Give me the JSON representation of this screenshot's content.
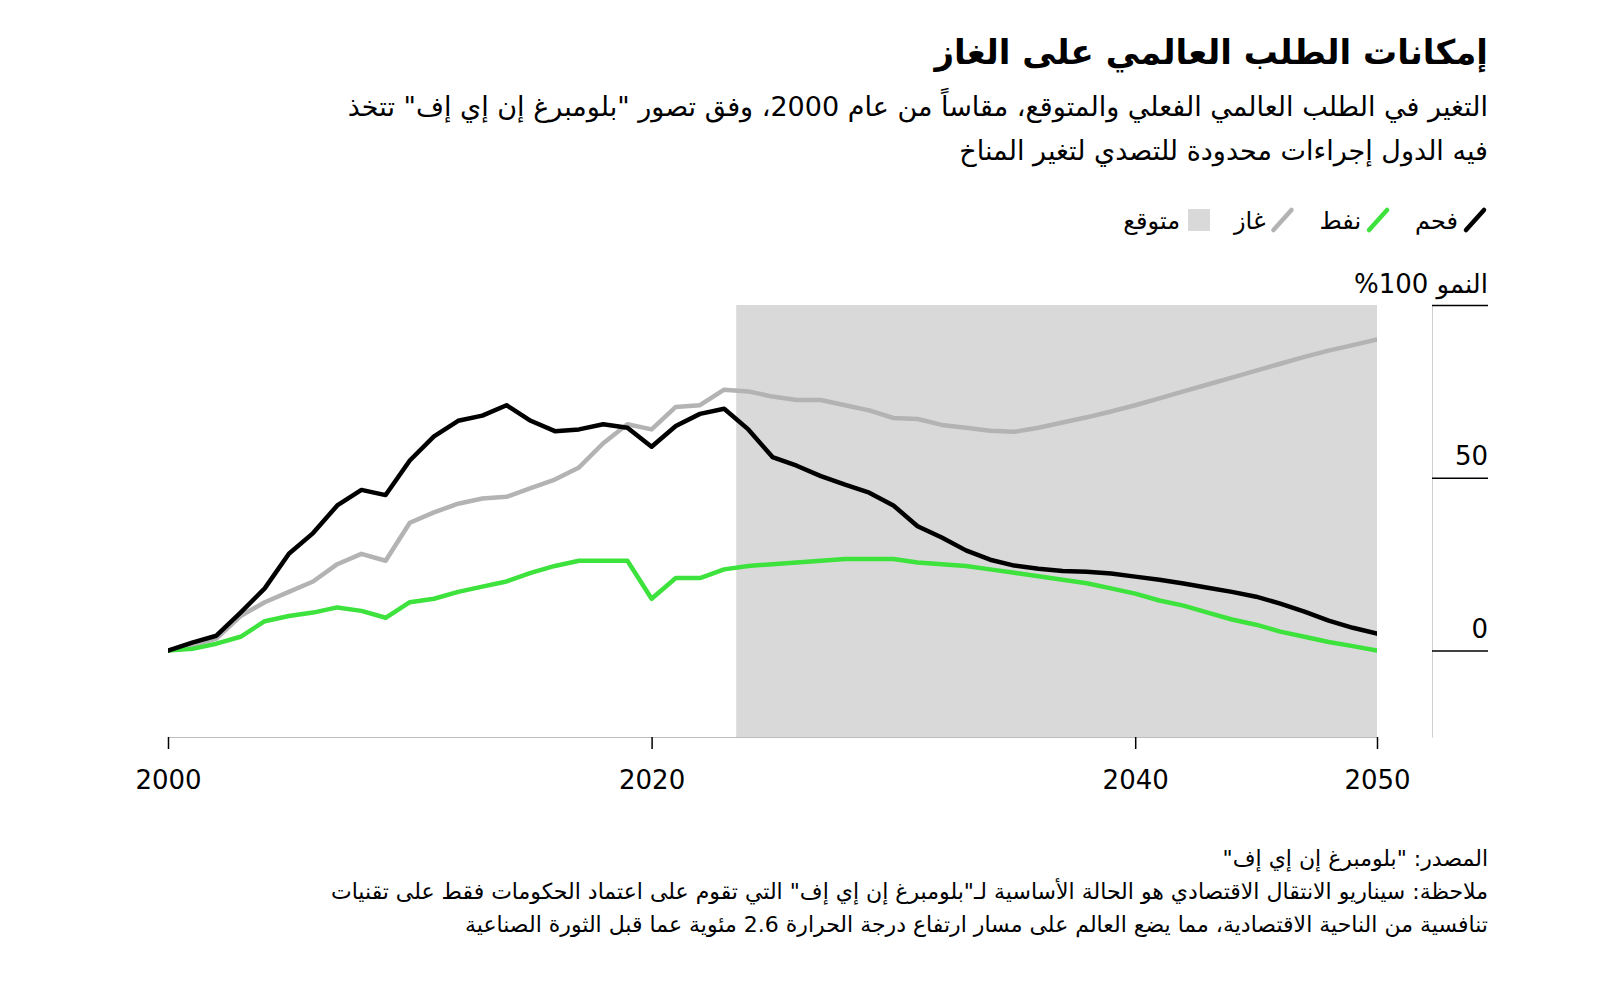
{
  "chart_data": {
    "type": "line",
    "title": "إمكانات الطلب العالمي على الغاز",
    "subtitle": [
      "التغير في الطلب العالمي الفعلي والمتوقع، مقاساً من عام 2000، وفق تصور \"بلومبرغ إن إي إف\" تتخذ",
      "فيه الدول إجراءات محدودة للتصدي لتغير المناخ"
    ],
    "forecast_label": "متوقع",
    "forecast_range": [
      2023.5,
      2050
    ],
    "source": "المصدر: \"بلومبرغ إن إي إف\"",
    "note": [
      "ملاحظة: سيناريو الانتقال الاقتصادي هو الحالة الأساسية لـ\"بلومبرغ إن إي إف\" التي تقوم على اعتماد الحكومات فقط على تقنيات",
      "تنافسية من الناحية الاقتصادية، مما يضع العالم على مسار ارتفاع درجة الحرارة 2.6 مئوية عما قبل الثورة الصناعية"
    ],
    "x": [
      2000,
      2001,
      2002,
      2003,
      2004,
      2005,
      2006,
      2007,
      2008,
      2009,
      2010,
      2011,
      2012,
      2013,
      2014,
      2015,
      2016,
      2017,
      2018,
      2019,
      2020,
      2021,
      2022,
      2023,
      2024,
      2025,
      2026,
      2027,
      2028,
      2029,
      2030,
      2031,
      2032,
      2033,
      2034,
      2035,
      2036,
      2037,
      2038,
      2039,
      2040,
      2041,
      2042,
      2043,
      2044,
      2045,
      2046,
      2047,
      2048,
      2049,
      2050
    ],
    "series": [
      {
        "name": "فحم",
        "color": "#000000",
        "values": [
          0,
          2.3,
          4.3,
          11,
          18,
          28,
          34,
          42,
          46.5,
          45,
          55,
          62,
          66.5,
          68,
          71,
          66.5,
          63.5,
          64,
          65.5,
          64.5,
          59,
          65,
          68.5,
          70,
          64,
          56,
          53.5,
          50.5,
          48,
          45.7,
          42,
          36,
          32.7,
          29,
          26.3,
          24.6,
          23.7,
          23,
          22.8,
          22.3,
          21.4,
          20.5,
          19.4,
          18.2,
          17,
          15.6,
          13.6,
          11.3,
          8.7,
          6.6,
          4.9
        ]
      },
      {
        "name": "نفط",
        "color": "#3de23d",
        "values": [
          0,
          0.5,
          2,
          4,
          8.5,
          10,
          11,
          12.5,
          11.5,
          9.5,
          14,
          15,
          17,
          18.5,
          20,
          22.5,
          24.5,
          26,
          26,
          26,
          15,
          21,
          21,
          23.5,
          24.5,
          25,
          25.5,
          26,
          26.5,
          26.5,
          26.5,
          25.5,
          25,
          24.5,
          23.5,
          22.5,
          21.5,
          20.5,
          19.5,
          18,
          16.5,
          14.5,
          13,
          11,
          9,
          7.5,
          5.5,
          4,
          2.5,
          1.3,
          0
        ]
      },
      {
        "name": "غاز",
        "color": "#b3b3b3",
        "values": [
          0,
          1.5,
          3.5,
          10,
          14,
          17,
          20,
          25,
          28,
          26,
          37,
          40,
          42.5,
          44,
          44.5,
          47,
          49.5,
          53,
          60,
          65.5,
          64,
          70.5,
          71,
          75.5,
          75,
          73.5,
          72.5,
          72.5,
          71,
          69.5,
          67.3,
          67,
          65.3,
          64.5,
          63.6,
          63.3,
          64.5,
          66,
          67.5,
          69.2,
          71,
          73,
          75,
          77,
          79,
          81,
          83,
          85,
          86.8,
          88.4,
          90
        ]
      }
    ],
    "xlim": [
      2000,
      2050
    ],
    "ylim": [
      -25,
      100
    ],
    "xticks": [
      2000,
      2020,
      2040,
      2050
    ],
    "yticks": [
      0,
      50,
      {
        "value": 100,
        "label": "النمو 100%"
      }
    ]
  }
}
